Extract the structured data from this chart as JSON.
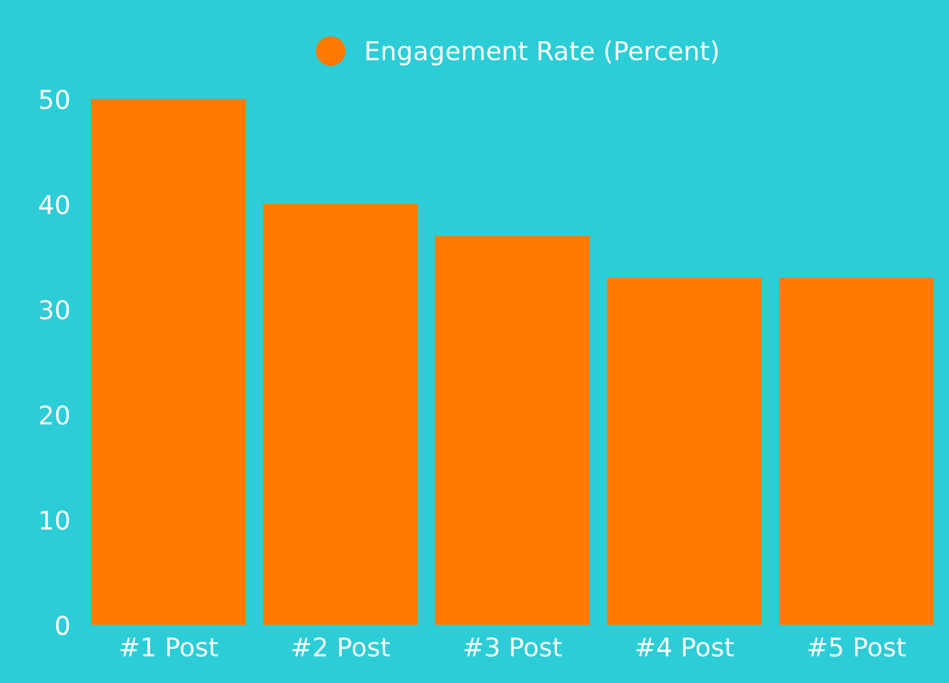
{
  "chart_data": {
    "type": "bar",
    "categories": [
      "#1 Post",
      "#2 Post",
      "#3 Post",
      "#4 Post",
      "#5 Post"
    ],
    "series": [
      {
        "name": "Engagement Rate (Percent)",
        "color": "#ff7a00",
        "values": [
          50,
          40,
          37,
          33,
          33
        ]
      }
    ],
    "ylim": [
      0,
      50
    ],
    "yticks": [
      0,
      10,
      20,
      30,
      40,
      50
    ],
    "grid": false,
    "legend": "top"
  }
}
